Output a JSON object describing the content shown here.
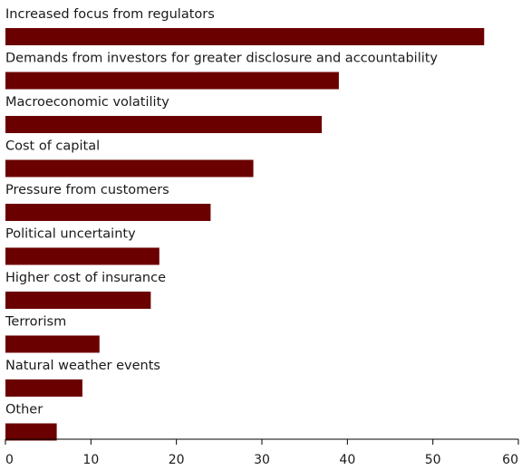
{
  "chart_data": {
    "type": "bar",
    "orientation": "horizontal",
    "title": "",
    "xlabel": "",
    "ylabel": "",
    "categories": [
      "Increased focus from regulators",
      "Demands from investors for greater disclosure and accountability",
      "Macroeconomic volatility",
      "Cost of capital",
      "Pressure from customers",
      "Political uncertainty",
      "Higher cost of insurance",
      "Terrorism",
      "Natural weather events",
      "Other"
    ],
    "values": [
      56,
      39,
      37,
      29,
      24,
      18,
      17,
      11,
      9,
      6
    ],
    "xlim": [
      0,
      60
    ],
    "xticks": [
      0,
      10,
      20,
      30,
      40,
      50,
      60
    ],
    "grid": false,
    "legend": "none",
    "bar_color": "#6b0000"
  }
}
